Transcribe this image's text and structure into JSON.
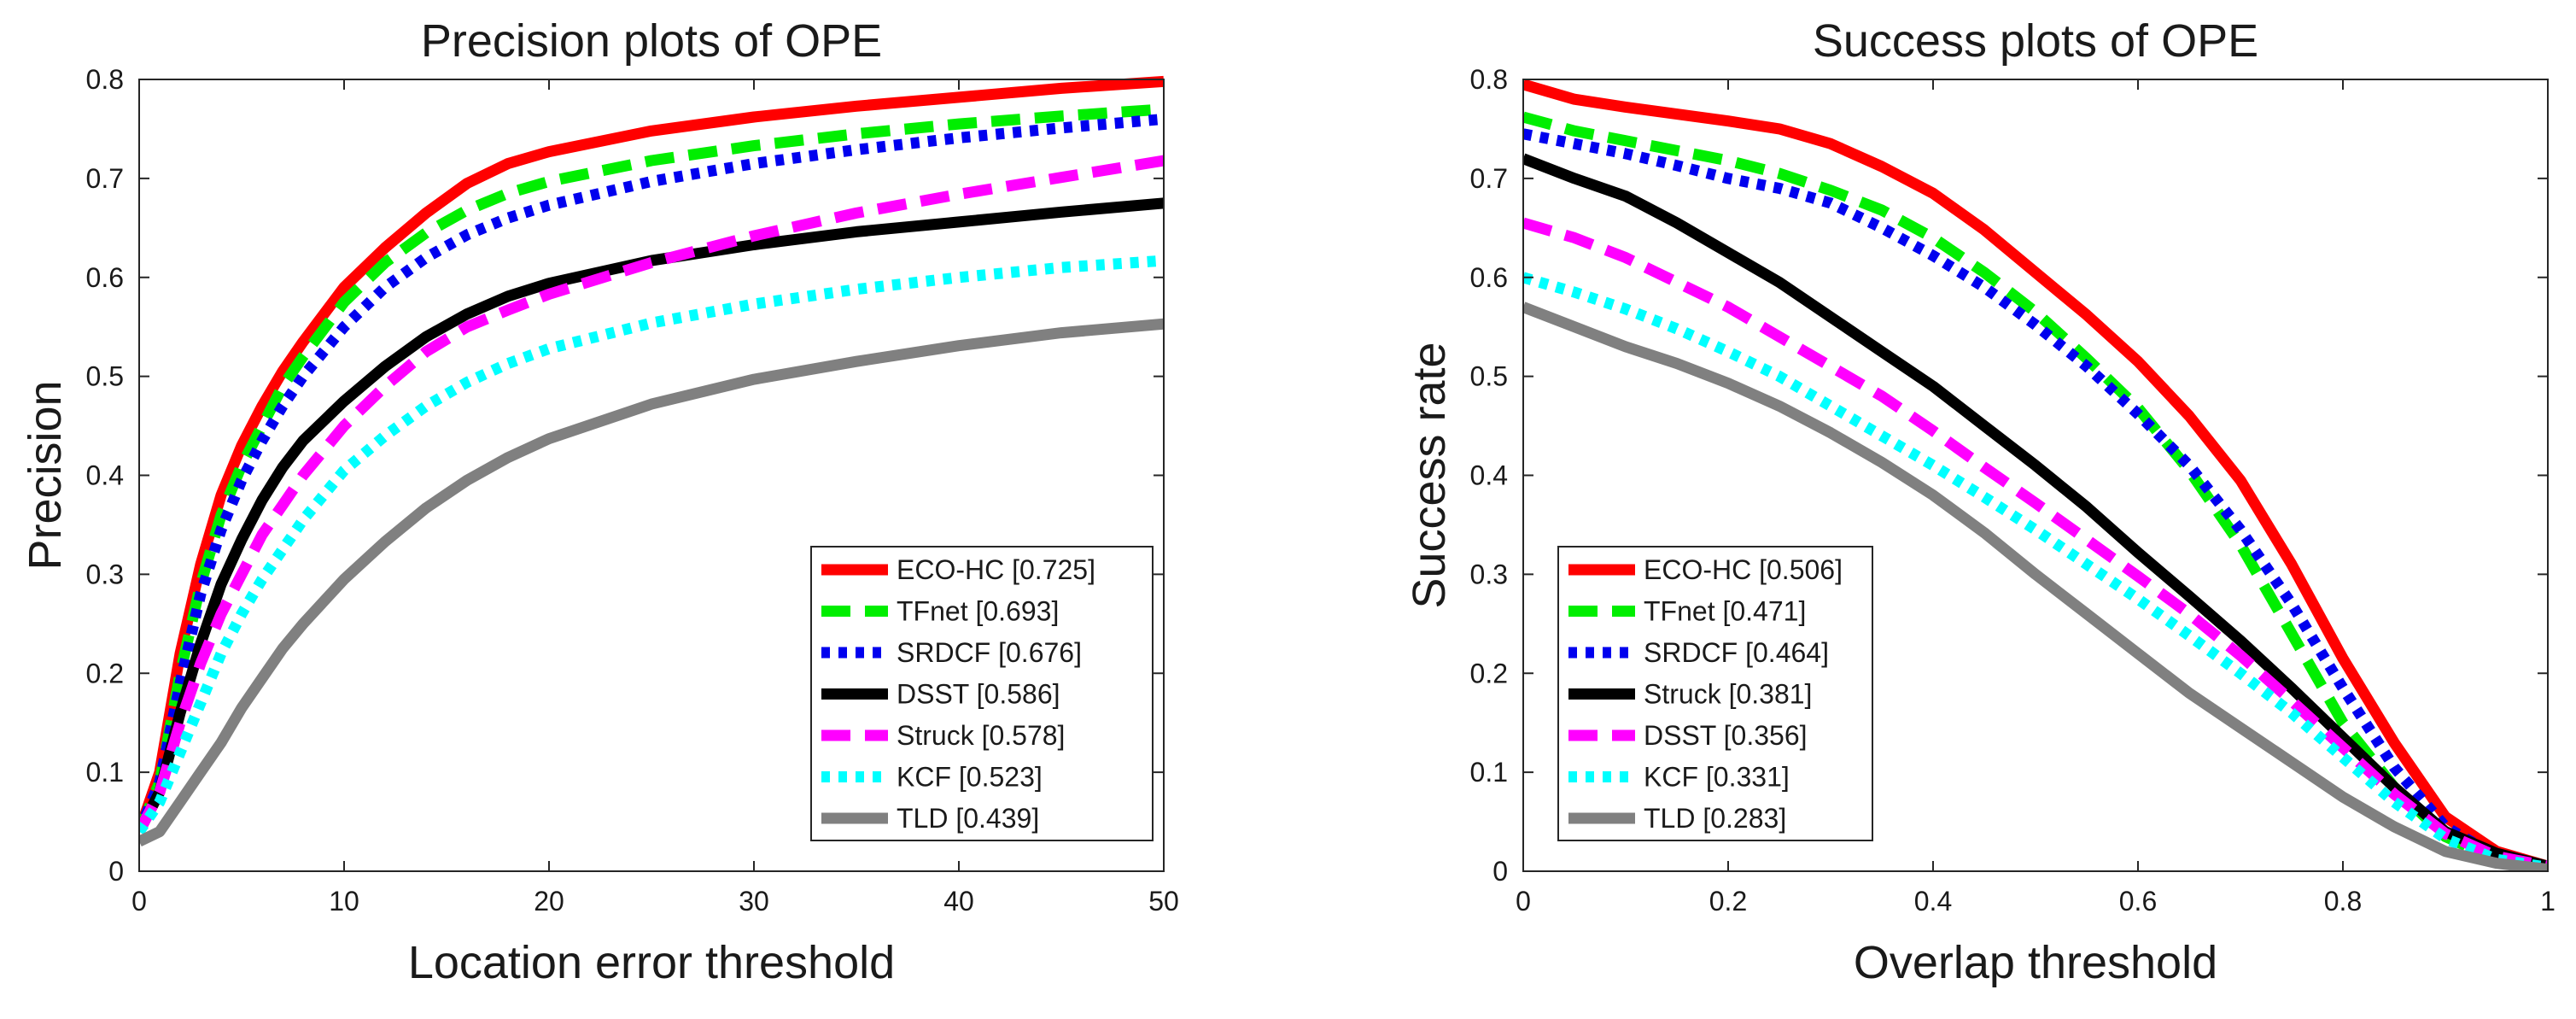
{
  "chart_data": [
    {
      "type": "line",
      "title": "Precision plots of OPE",
      "xlabel": "Location error threshold",
      "ylabel": "Precision",
      "xlim": [
        0,
        50
      ],
      "ylim": [
        0,
        0.8
      ],
      "xticks": [
        "0",
        "10",
        "20",
        "30",
        "40",
        "50"
      ],
      "yticks": [
        "0",
        "0.1",
        "0.2",
        "0.3",
        "0.4",
        "0.5",
        "0.6",
        "0.7",
        "0.8"
      ],
      "grid": false,
      "legend_position": "bottom-right",
      "x": [
        0,
        1,
        2,
        3,
        4,
        5,
        6,
        7,
        8,
        10,
        12,
        14,
        16,
        18,
        20,
        25,
        30,
        35,
        40,
        45,
        50
      ],
      "series": [
        {
          "name": "ECO-HC [0.725]",
          "color": "#ff0000",
          "dash": "solid",
          "values": [
            0.04,
            0.1,
            0.22,
            0.31,
            0.38,
            0.43,
            0.47,
            0.505,
            0.535,
            0.59,
            0.63,
            0.665,
            0.695,
            0.715,
            0.727,
            0.748,
            0.762,
            0.773,
            0.782,
            0.791,
            0.798
          ]
        },
        {
          "name": "TFnet [0.693]",
          "color": "#00ee00",
          "dash": "longdash",
          "values": [
            0.04,
            0.09,
            0.2,
            0.29,
            0.36,
            0.41,
            0.45,
            0.49,
            0.52,
            0.575,
            0.615,
            0.645,
            0.668,
            0.685,
            0.697,
            0.718,
            0.733,
            0.745,
            0.755,
            0.763,
            0.77
          ]
        },
        {
          "name": "SRDCF [0.676]",
          "color": "#0000ee",
          "dash": "dotted",
          "values": [
            0.04,
            0.09,
            0.19,
            0.28,
            0.345,
            0.395,
            0.435,
            0.47,
            0.5,
            0.55,
            0.59,
            0.62,
            0.643,
            0.66,
            0.673,
            0.697,
            0.715,
            0.729,
            0.741,
            0.751,
            0.76
          ]
        },
        {
          "name": "DSST [0.586]",
          "color": "#000000",
          "dash": "solid",
          "values": [
            0.04,
            0.08,
            0.16,
            0.23,
            0.29,
            0.335,
            0.375,
            0.408,
            0.435,
            0.475,
            0.51,
            0.54,
            0.563,
            0.581,
            0.594,
            0.617,
            0.633,
            0.646,
            0.656,
            0.666,
            0.675
          ]
        },
        {
          "name": "Struck [0.578]",
          "color": "#ff00ff",
          "dash": "longdash",
          "values": [
            0.04,
            0.08,
            0.15,
            0.21,
            0.26,
            0.3,
            0.34,
            0.37,
            0.4,
            0.45,
            0.49,
            0.525,
            0.55,
            0.567,
            0.583,
            0.615,
            0.642,
            0.665,
            0.684,
            0.701,
            0.718
          ]
        },
        {
          "name": "KCF [0.523]",
          "color": "#00ffff",
          "dash": "dotted",
          "values": [
            0.04,
            0.07,
            0.12,
            0.17,
            0.22,
            0.26,
            0.295,
            0.325,
            0.355,
            0.405,
            0.44,
            0.47,
            0.494,
            0.513,
            0.528,
            0.554,
            0.573,
            0.588,
            0.6,
            0.61,
            0.617
          ]
        },
        {
          "name": "TLD [0.439]",
          "color": "#808080",
          "dash": "solid",
          "values": [
            0.03,
            0.04,
            0.07,
            0.1,
            0.13,
            0.165,
            0.195,
            0.225,
            0.25,
            0.295,
            0.333,
            0.367,
            0.395,
            0.418,
            0.437,
            0.472,
            0.497,
            0.515,
            0.531,
            0.544,
            0.553
          ]
        }
      ]
    },
    {
      "type": "line",
      "title": "Success plots of OPE",
      "xlabel": "Overlap threshold",
      "ylabel": "Success rate",
      "xlim": [
        0,
        1
      ],
      "ylim": [
        0,
        0.8
      ],
      "xticks": [
        "0",
        "0.2",
        "0.4",
        "0.6",
        "0.8",
        "1"
      ],
      "yticks": [
        "0",
        "0.1",
        "0.2",
        "0.3",
        "0.4",
        "0.5",
        "0.6",
        "0.7",
        "0.8"
      ],
      "grid": false,
      "legend_position": "bottom-left",
      "x": [
        0,
        0.05,
        0.1,
        0.15,
        0.2,
        0.25,
        0.3,
        0.35,
        0.4,
        0.45,
        0.5,
        0.55,
        0.6,
        0.65,
        0.7,
        0.75,
        0.8,
        0.85,
        0.9,
        0.95,
        1.0
      ],
      "series": [
        {
          "name": "ECO-HC [0.506]",
          "color": "#ff0000",
          "dash": "solid",
          "values": [
            0.795,
            0.78,
            0.772,
            0.765,
            0.758,
            0.75,
            0.735,
            0.712,
            0.685,
            0.648,
            0.605,
            0.562,
            0.515,
            0.46,
            0.395,
            0.31,
            0.215,
            0.13,
            0.055,
            0.02,
            0.005
          ]
        },
        {
          "name": "TFnet [0.471]",
          "color": "#00ee00",
          "dash": "longdash",
          "values": [
            0.762,
            0.748,
            0.738,
            0.728,
            0.718,
            0.705,
            0.688,
            0.668,
            0.64,
            0.605,
            0.565,
            0.518,
            0.468,
            0.405,
            0.33,
            0.24,
            0.15,
            0.085,
            0.035,
            0.012,
            0.005
          ]
        },
        {
          "name": "SRDCF [0.464]",
          "color": "#0000ee",
          "dash": "dotted",
          "values": [
            0.745,
            0.735,
            0.725,
            0.713,
            0.7,
            0.69,
            0.675,
            0.65,
            0.622,
            0.59,
            0.552,
            0.51,
            0.462,
            0.41,
            0.345,
            0.27,
            0.185,
            0.105,
            0.045,
            0.015,
            0.005
          ]
        },
        {
          "name": "Struck [0.381]",
          "color": "#000000",
          "dash": "solid",
          "values": [
            0.72,
            0.7,
            0.682,
            0.655,
            0.625,
            0.595,
            0.56,
            0.525,
            0.49,
            0.45,
            0.41,
            0.368,
            0.322,
            0.278,
            0.233,
            0.185,
            0.135,
            0.085,
            0.04,
            0.018,
            0.005
          ]
        },
        {
          "name": "DSST [0.356]",
          "color": "#ff00ff",
          "dash": "longdash",
          "values": [
            0.655,
            0.64,
            0.62,
            0.595,
            0.57,
            0.54,
            0.51,
            0.48,
            0.445,
            0.408,
            0.372,
            0.335,
            0.298,
            0.26,
            0.218,
            0.172,
            0.125,
            0.078,
            0.038,
            0.015,
            0.005
          ]
        },
        {
          "name": "KCF [0.331]",
          "color": "#00ffff",
          "dash": "dotted",
          "values": [
            0.6,
            0.585,
            0.568,
            0.548,
            0.525,
            0.5,
            0.47,
            0.44,
            0.41,
            0.378,
            0.345,
            0.31,
            0.275,
            0.238,
            0.2,
            0.16,
            0.115,
            0.07,
            0.033,
            0.012,
            0.004
          ]
        },
        {
          "name": "TLD [0.283]",
          "color": "#808080",
          "dash": "solid",
          "values": [
            0.57,
            0.55,
            0.53,
            0.513,
            0.493,
            0.47,
            0.443,
            0.413,
            0.38,
            0.342,
            0.3,
            0.26,
            0.22,
            0.18,
            0.145,
            0.11,
            0.075,
            0.045,
            0.02,
            0.008,
            0.002
          ]
        }
      ]
    }
  ]
}
